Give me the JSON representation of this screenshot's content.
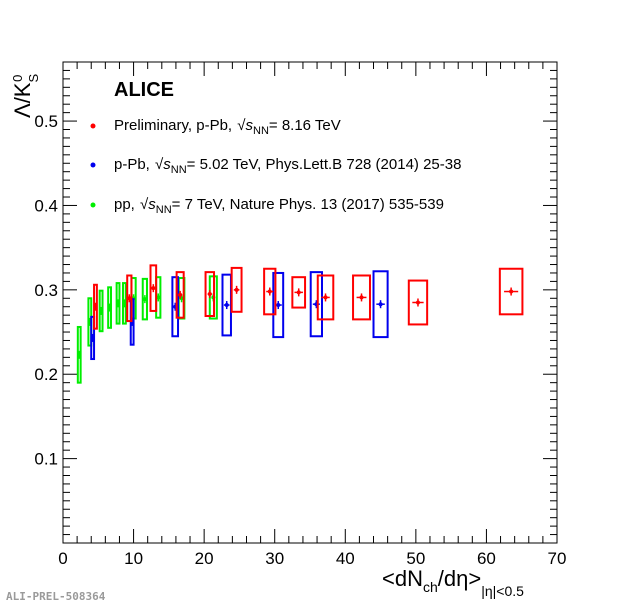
{
  "chart_data": {
    "type": "scatter",
    "brand": "ALICE",
    "xlabel": "<dN_ch/dη>_|η|<0.5",
    "ylabel": "Λ/K⁰_S",
    "xlim": [
      0,
      70
    ],
    "ylim": [
      0,
      0.57
    ],
    "x_ticks": [
      0,
      10,
      20,
      30,
      40,
      50,
      60,
      70
    ],
    "y_ticks": [
      0.1,
      0.2,
      0.3,
      0.4,
      0.5
    ],
    "grid": false,
    "legend_position": "top-left",
    "footer_label": "ALI-PREL-508364",
    "series": [
      {
        "name": "Preliminary, p-Pb, √s_NN = 8.16 TeV",
        "legend_parts": [
          "Preliminary, p-Pb, ",
          "s",
          "NN",
          "= 8.16 TeV"
        ],
        "color": "#ff0000",
        "points": [
          {
            "x": 4.6,
            "y": 0.28,
            "xerr": 0.2,
            "ybox": 0.026,
            "xbox": 0.2
          },
          {
            "x": 9.4,
            "y": 0.29,
            "xerr": 0.2,
            "ybox": 0.027,
            "xbox": 0.3
          },
          {
            "x": 12.8,
            "y": 0.302,
            "xerr": 0.2,
            "ybox": 0.027,
            "xbox": 0.4
          },
          {
            "x": 16.6,
            "y": 0.294,
            "xerr": 0.2,
            "ybox": 0.027,
            "xbox": 0.5
          },
          {
            "x": 20.8,
            "y": 0.295,
            "xerr": 0.3,
            "ybox": 0.026,
            "xbox": 0.6
          },
          {
            "x": 24.6,
            "y": 0.3,
            "xerr": 0.4,
            "ybox": 0.026,
            "xbox": 0.7
          },
          {
            "x": 29.3,
            "y": 0.298,
            "xerr": 0.5,
            "ybox": 0.027,
            "xbox": 0.8
          },
          {
            "x": 33.4,
            "y": 0.297,
            "xerr": 0.6,
            "ybox": 0.018,
            "xbox": 0.9
          },
          {
            "x": 37.2,
            "y": 0.291,
            "xerr": 0.6,
            "ybox": 0.026,
            "xbox": 1.1
          },
          {
            "x": 42.3,
            "y": 0.291,
            "xerr": 0.7,
            "ybox": 0.026,
            "xbox": 1.2
          },
          {
            "x": 50.3,
            "y": 0.285,
            "xerr": 0.8,
            "ybox": 0.026,
            "xbox": 1.3
          },
          {
            "x": 63.5,
            "y": 0.298,
            "xerr": 1.0,
            "ybox": 0.027,
            "xbox": 1.6
          }
        ]
      },
      {
        "name": "p-Pb, √s_NN = 5.02 TeV, Phys.Lett.B 728 (2014) 25-38",
        "legend_parts": [
          "p-Pb, ",
          "s",
          "NN",
          "= 5.02 TeV, Phys.Lett.B 728 (2014) 25-38"
        ],
        "color": "#0000ee",
        "points": [
          {
            "x": 4.2,
            "y": 0.243,
            "xerr": 0.2,
            "ybox": 0.025,
            "xbox": 0.2
          },
          {
            "x": 9.8,
            "y": 0.262,
            "xerr": 0.2,
            "ybox": 0.027,
            "xbox": 0.2
          },
          {
            "x": 15.9,
            "y": 0.28,
            "xerr": 0.3,
            "ybox": 0.035,
            "xbox": 0.4
          },
          {
            "x": 23.2,
            "y": 0.282,
            "xerr": 0.4,
            "ybox": 0.036,
            "xbox": 0.6
          },
          {
            "x": 30.5,
            "y": 0.282,
            "xerr": 0.5,
            "ybox": 0.038,
            "xbox": 0.7
          },
          {
            "x": 35.9,
            "y": 0.283,
            "xerr": 0.5,
            "ybox": 0.038,
            "xbox": 0.8
          },
          {
            "x": 45.0,
            "y": 0.283,
            "xerr": 0.6,
            "ybox": 0.039,
            "xbox": 1.0
          }
        ]
      },
      {
        "name": "pp, √s_NN = 7 TeV, Nature Phys. 13 (2017) 535-539",
        "legend_parts": [
          "pp, ",
          "s",
          "NN",
          "= 7 TeV, Nature Phys. 13 (2017) 535-539"
        ],
        "color": "#00ee00",
        "points": [
          {
            "x": 2.3,
            "y": 0.223,
            "xerr": 0.1,
            "ybox": 0.033,
            "xbox": 0.2
          },
          {
            "x": 3.8,
            "y": 0.262,
            "xerr": 0.1,
            "ybox": 0.028,
            "xbox": 0.2
          },
          {
            "x": 5.4,
            "y": 0.275,
            "xerr": 0.1,
            "ybox": 0.024,
            "xbox": 0.2
          },
          {
            "x": 6.6,
            "y": 0.279,
            "xerr": 0.1,
            "ybox": 0.024,
            "xbox": 0.2
          },
          {
            "x": 7.8,
            "y": 0.284,
            "xerr": 0.1,
            "ybox": 0.024,
            "xbox": 0.2
          },
          {
            "x": 8.7,
            "y": 0.284,
            "xerr": 0.1,
            "ybox": 0.024,
            "xbox": 0.2
          },
          {
            "x": 10.0,
            "y": 0.29,
            "xerr": 0.1,
            "ybox": 0.024,
            "xbox": 0.3
          },
          {
            "x": 11.6,
            "y": 0.289,
            "xerr": 0.1,
            "ybox": 0.024,
            "xbox": 0.3
          },
          {
            "x": 13.5,
            "y": 0.291,
            "xerr": 0.2,
            "ybox": 0.024,
            "xbox": 0.3
          },
          {
            "x": 16.8,
            "y": 0.29,
            "xerr": 0.2,
            "ybox": 0.024,
            "xbox": 0.4
          },
          {
            "x": 21.3,
            "y": 0.291,
            "xerr": 0.2,
            "ybox": 0.025,
            "xbox": 0.5
          }
        ]
      }
    ]
  }
}
